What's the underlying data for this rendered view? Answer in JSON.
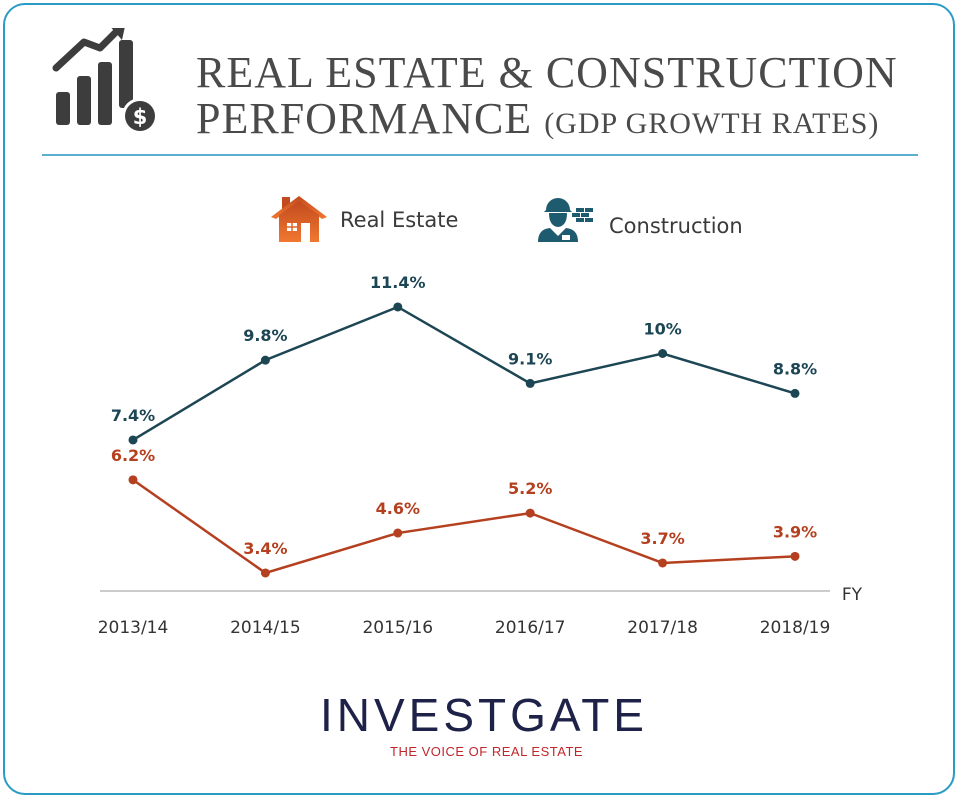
{
  "header": {
    "title_line1": "REAL ESTATE & CONSTRUCTION",
    "title_line2": "PERFORMANCE",
    "title_suffix": "(GDP GROWTH RATES)",
    "icon": "growth-chart-dollar-icon"
  },
  "colors": {
    "construction": "#1d4654",
    "real_estate": "#b5401f",
    "border": "#2a9bc4",
    "logo": "#1e2248",
    "tagline": "#c0272d"
  },
  "chart_data": {
    "type": "line",
    "title": "REAL ESTATE & CONSTRUCTION PERFORMANCE (GDP GROWTH RATES)",
    "xlabel": "FY",
    "ylabel": "",
    "categories": [
      "2013/14",
      "2014/15",
      "2015/16",
      "2016/17",
      "2017/18",
      "2018/19"
    ],
    "series": [
      {
        "name": "Construction",
        "values": [
          7.4,
          9.8,
          11.4,
          9.1,
          10,
          8.8
        ],
        "labels": [
          "7.4%",
          "9.8%",
          "11.4%",
          "9.1%",
          "10%",
          "8.8%"
        ],
        "icon": "construction-worker-icon"
      },
      {
        "name": "Real Estate",
        "values": [
          6.2,
          3.4,
          4.6,
          5.2,
          3.7,
          3.9
        ],
        "labels": [
          "6.2%",
          "3.4%",
          "4.6%",
          "5.2%",
          "3.7%",
          "3.9%"
        ],
        "icon": "house-icon"
      }
    ],
    "legend": "top",
    "grid": false
  },
  "footer": {
    "logo": "INVESTGATE",
    "tagline": "THE VOICE OF REAL ESTATE"
  }
}
